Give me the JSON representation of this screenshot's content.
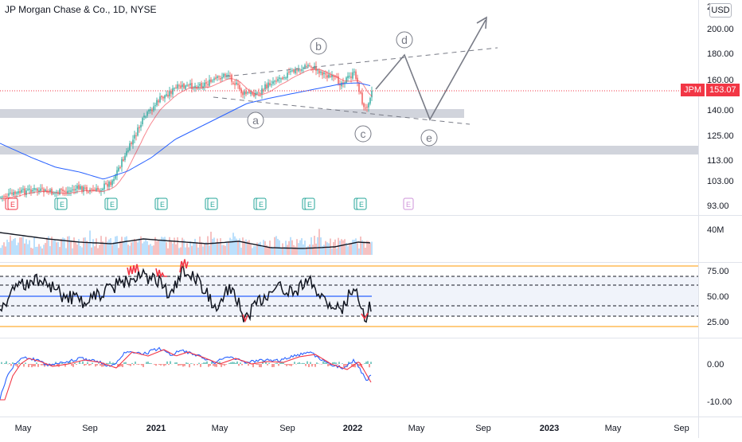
{
  "header": {
    "title": "JP Morgan Chase & Co., 1D, NYSE",
    "currency_button": "USD"
  },
  "last_price_tag": {
    "symbol": "JPM",
    "price": "153.07",
    "color": "#f23645"
  },
  "price_axis": {
    "labels": [
      "200.00",
      "180.00",
      "160.00",
      "140.00",
      "125.00",
      "113.00",
      "103.00",
      "93.00"
    ],
    "top_partial_label": "2"
  },
  "volume_axis": {
    "labels": [
      "40M"
    ]
  },
  "rsi_axis": {
    "labels": [
      "75.00",
      "50.00",
      "25.00"
    ]
  },
  "macd_axis": {
    "labels": [
      "0.00",
      "-10.00"
    ]
  },
  "time_axis": {
    "labels": [
      "May",
      "Sep",
      "2021",
      "May",
      "Sep",
      "2022",
      "May",
      "Sep",
      "2023",
      "May",
      "Sep"
    ],
    "bold": [
      "2021",
      "2022",
      "2023"
    ]
  },
  "wave_labels": [
    "a",
    "b",
    "c",
    "d",
    "e"
  ],
  "earnings_marker": "E",
  "colors": {
    "up": "#26a69a",
    "down": "#ef5350",
    "ma_blue": "#2962ff",
    "ma_red": "#f23645",
    "rsi_line": "#131722",
    "rsi_mid": "#2962ff",
    "rsi_bounds": "#ff9800",
    "zone_gray": "#d1d4dc",
    "projection": "#787b86"
  },
  "chart_data": {
    "type": "candlestick",
    "symbol": "JPM",
    "exchange": "NYSE",
    "interval": "1D",
    "last_price": 153.07,
    "y_scale": "log",
    "y_range": [
      88,
      222
    ],
    "support_zones": [
      [
        135,
        141
      ],
      [
        116,
        121
      ]
    ],
    "approx_close_path": [
      {
        "date": "2020-04",
        "close": 97
      },
      {
        "date": "2020-06",
        "close": 100
      },
      {
        "date": "2020-07",
        "close": 98
      },
      {
        "date": "2020-08",
        "close": 98
      },
      {
        "date": "2020-09",
        "close": 101
      },
      {
        "date": "2020-10",
        "close": 98
      },
      {
        "date": "2020-11",
        "close": 115
      },
      {
        "date": "2020-12",
        "close": 127
      },
      {
        "date": "2021-01",
        "close": 140
      },
      {
        "date": "2021-02",
        "close": 150
      },
      {
        "date": "2021-03",
        "close": 152
      },
      {
        "date": "2021-04",
        "close": 154
      },
      {
        "date": "2021-05",
        "close": 165
      },
      {
        "date": "2021-06",
        "close": 155
      },
      {
        "date": "2021-07",
        "close": 152
      },
      {
        "date": "2021-08",
        "close": 160
      },
      {
        "date": "2021-09",
        "close": 164
      },
      {
        "date": "2021-10",
        "close": 170
      },
      {
        "date": "2021-11",
        "close": 165
      },
      {
        "date": "2021-12",
        "close": 160
      },
      {
        "date": "2022-01",
        "close": 168
      },
      {
        "date": "2022-02",
        "close": 148
      },
      {
        "date": "2022-02-end",
        "close": 153.07
      }
    ],
    "projection_path": [
      {
        "label": "c",
        "price": 153
      },
      {
        "label": "d",
        "price": 177
      },
      {
        "label": "e",
        "price": 134
      },
      {
        "label": "",
        "price": 215
      }
    ],
    "indicators": {
      "volume": {
        "axis_label": "40M"
      },
      "rsi": {
        "levels": [
          25,
          50,
          75
        ]
      },
      "macd": {
        "levels": [
          0,
          -10
        ]
      }
    }
  }
}
